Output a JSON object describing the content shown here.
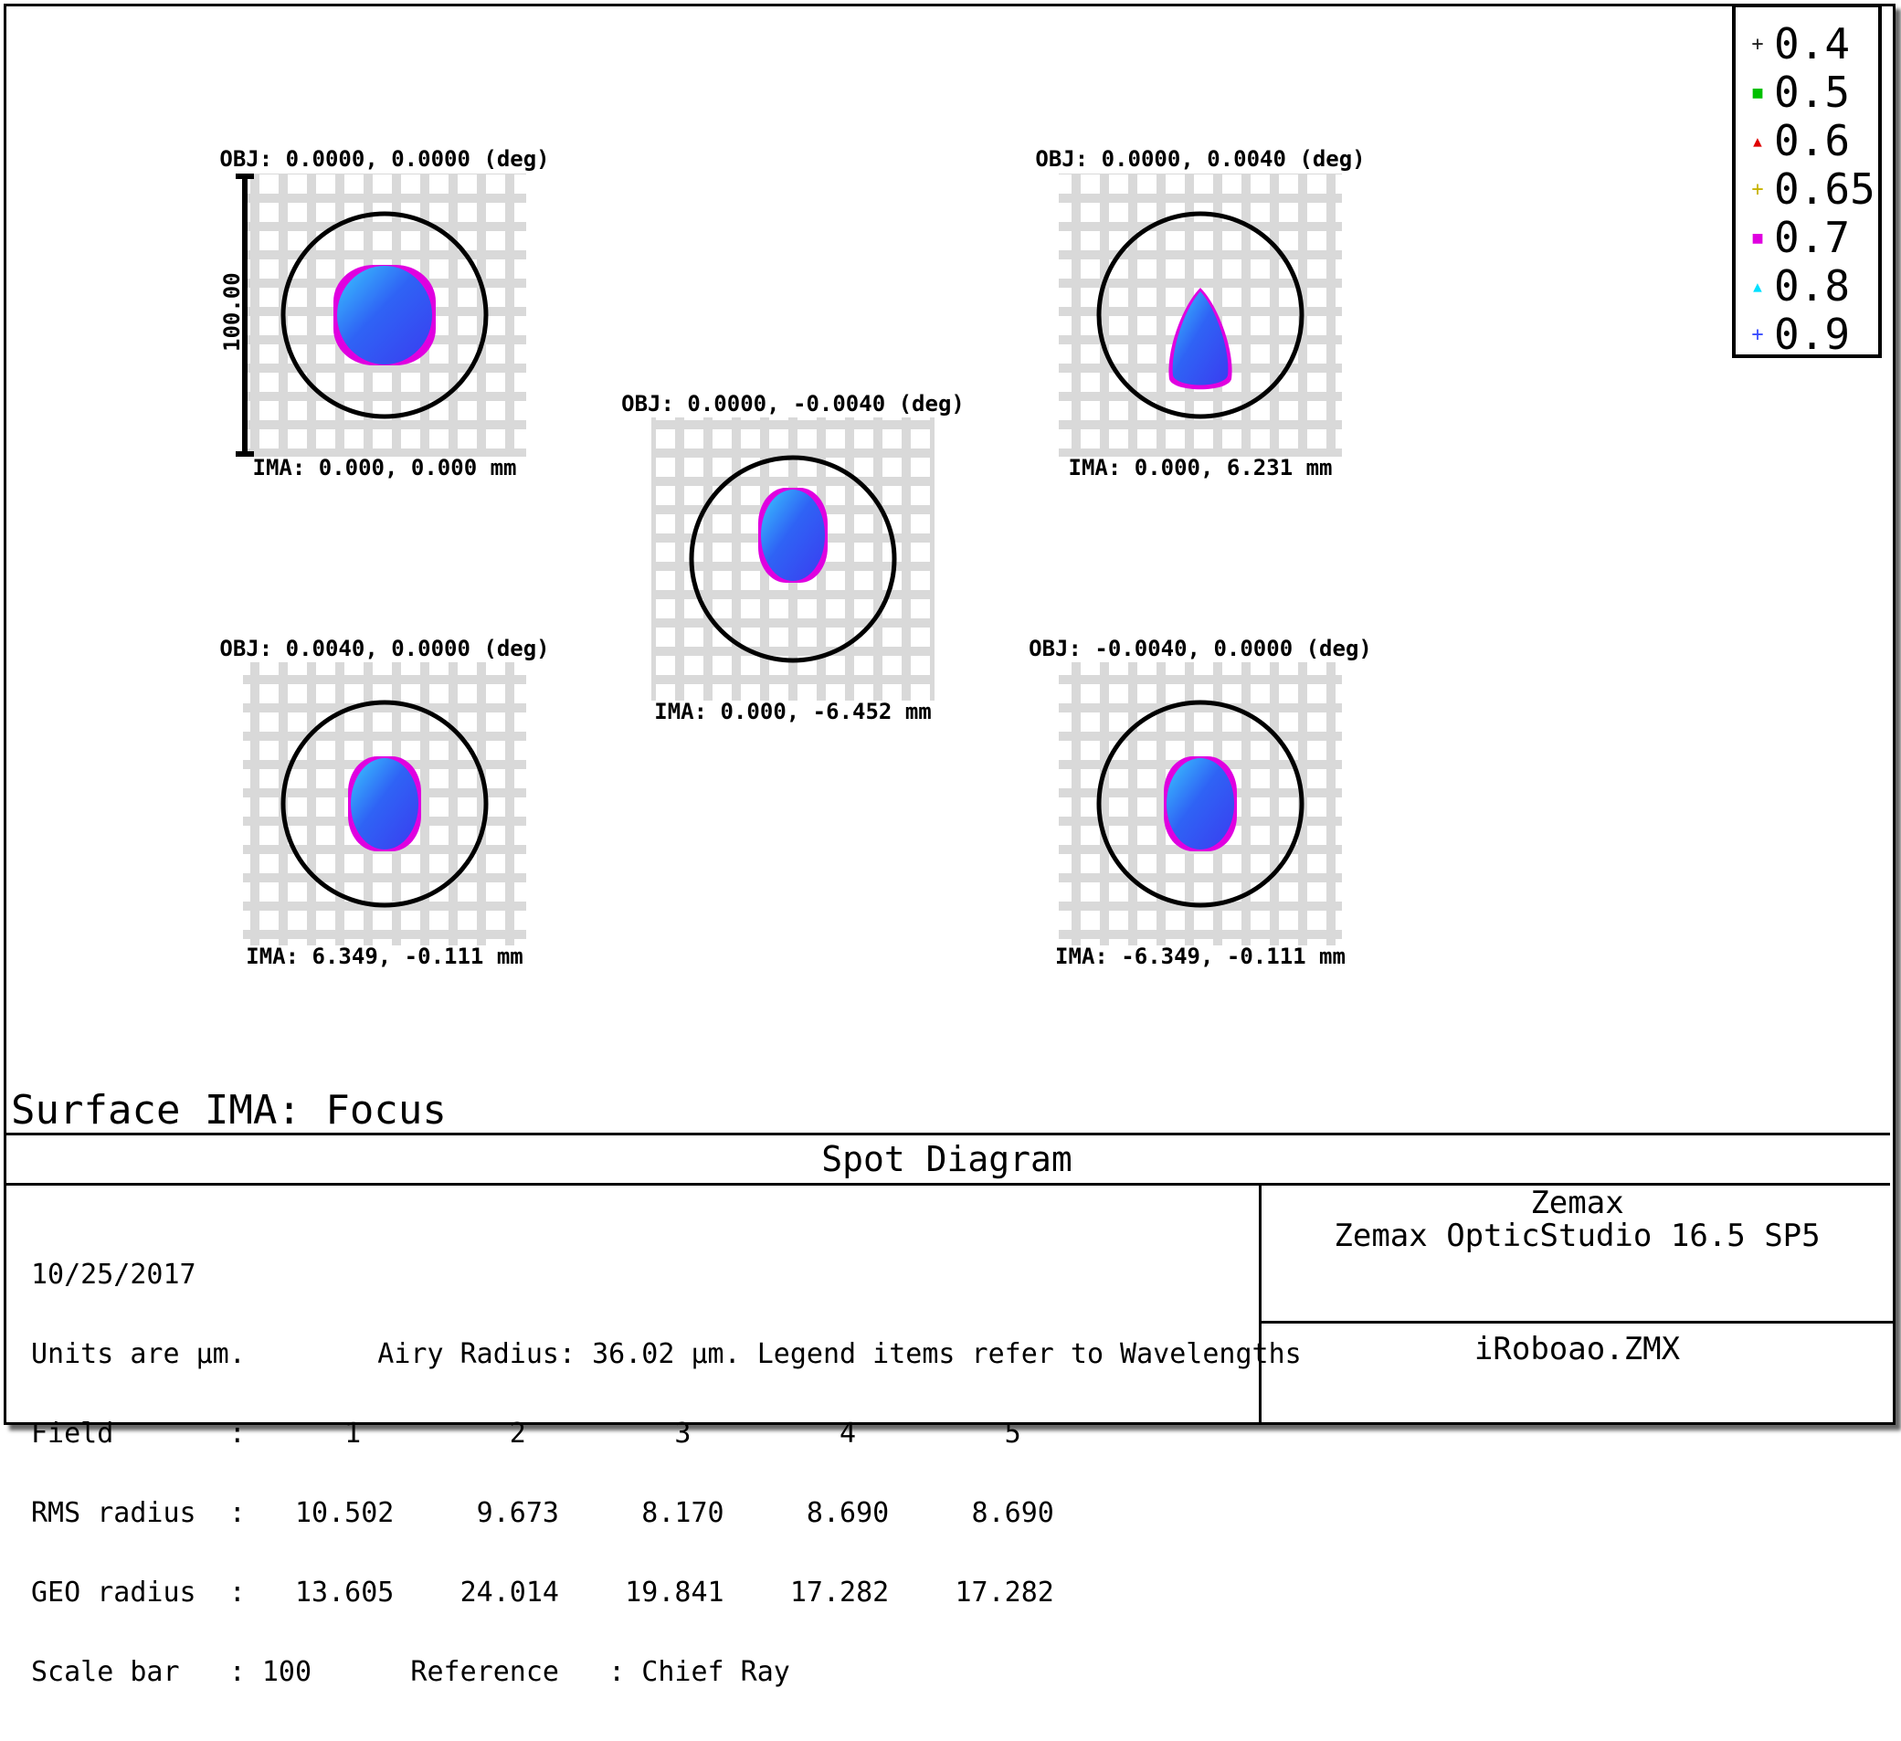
{
  "chart_data": {
    "type": "scatter",
    "title": "Spot Diagram",
    "legend": {
      "placement": "top-right",
      "items": [
        {
          "label": "0.4",
          "color": "#222222",
          "marker": "+"
        },
        {
          "label": "0.5",
          "color": "#00c000",
          "marker": "■"
        },
        {
          "label": "0.6",
          "color": "#e00000",
          "marker": "▲"
        },
        {
          "label": "0.65",
          "color": "#c8b400",
          "marker": "+"
        },
        {
          "label": "0.7",
          "color": "#e000e0",
          "marker": "■"
        },
        {
          "label": "0.8",
          "color": "#00e0ff",
          "marker": "▲"
        },
        {
          "label": "0.9",
          "color": "#3a4dff",
          "marker": "+"
        }
      ]
    },
    "fields": [
      {
        "obj": "OBJ: 0.0000, 0.0000 (deg)",
        "ima": "IMA: 0.000, 0.000 mm",
        "shape": "round",
        "rms_radius": 10.502,
        "geo_radius": 13.605
      },
      {
        "obj": "OBJ: 0.0000, 0.0040 (deg)",
        "ima": "IMA: 0.000, 6.231 mm",
        "shape": "teardrop",
        "rms_radius": 9.673,
        "geo_radius": 24.014
      },
      {
        "obj": "OBJ: 0.0000, -0.0040 (deg)",
        "ima": "IMA: 0.000, -6.452 mm",
        "shape": "oval",
        "rms_radius": 8.17,
        "geo_radius": 19.841
      },
      {
        "obj": "OBJ: 0.0040, 0.0000 (deg)",
        "ima": "IMA: 6.349, -0.111 mm",
        "shape": "oval",
        "rms_radius": 8.69,
        "geo_radius": 17.282
      },
      {
        "obj": "OBJ: -0.0040, 0.0000 (deg)",
        "ima": "IMA: -6.349, -0.111 mm",
        "shape": "oval",
        "rms_radius": 8.69,
        "geo_radius": 17.282
      }
    ],
    "airy_radius": 36.02,
    "scale_bar_label": "100.00",
    "grid": true
  },
  "surface_label": "Surface IMA: Focus",
  "footer": {
    "title": "Spot Diagram",
    "info_lines": [
      "10/25/2017",
      "Units are µm.        Airy Radius: 36.02 µm. Legend items refer to Wavelengths",
      "Field       :      1         2         3         4         5",
      "RMS radius  :   10.502     9.673     8.170     8.690     8.690",
      "GEO radius  :   13.605    24.014    19.841    17.282    17.282",
      "Scale bar   : 100      Reference   : Chief Ray"
    ],
    "company": "Zemax",
    "product": "Zemax OpticStudio 16.5 SP5",
    "file": "iRoboao.ZMX"
  }
}
